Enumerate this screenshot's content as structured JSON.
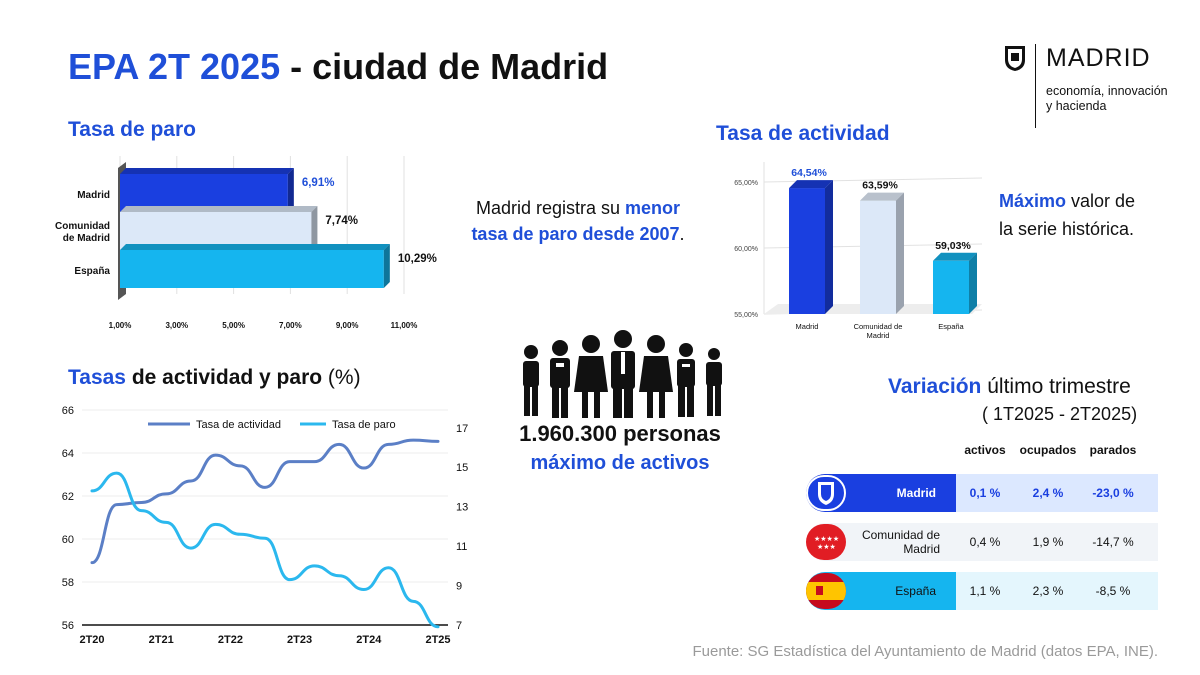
{
  "title": {
    "part1": "EPA 2T 2025",
    "part2": " - ciudad de Madrid"
  },
  "logo": {
    "word": "MADRID",
    "sub": "economía, innovación y hacienda"
  },
  "sections": {
    "paro": "Tasa de paro",
    "actividad": "Tasa de actividad",
    "tasas_a": "Tasas",
    "tasas_b": " de actividad y paro ",
    "tasas_c": "(%)",
    "variacion_a": "Variación",
    "variacion_b": " último trimestre",
    "variacion_sub": "( 1T2025 - 2T2025)"
  },
  "notes": {
    "paro_a": "Madrid registra su ",
    "paro_b": "menor",
    "paro_c": "tasa de paro desde 2007",
    "paro_d": ".",
    "actividad_a": "Máximo",
    "actividad_b": " valor de",
    "actividad_c": "la serie histórica."
  },
  "people": {
    "count": "1.960.300 personas",
    "label": "máximo de activos"
  },
  "source": "Fuente: SG Estadística del Ayuntamiento de Madrid (datos EPA, INE).",
  "colors": {
    "madrid": "#1a3fe0",
    "comunidad": "#dce8f8",
    "espana": "#15b5ef",
    "title_blue": "#1f4fd8",
    "actividad_line": "#5b7fc6",
    "paro_line": "#2bb8ee"
  },
  "variacion": {
    "headers": [
      "activos",
      "ocupados",
      "parados"
    ],
    "rows": [
      {
        "name": "Madrid",
        "values": [
          "0,1 %",
          "2,4 %",
          "-23,0 %"
        ],
        "icon": "madrid-shield-icon"
      },
      {
        "name": "Comunidad de Madrid",
        "values": [
          "0,4 %",
          "1,9 %",
          "-14,7 %"
        ],
        "icon": "comunidad-flag-icon"
      },
      {
        "name": "España",
        "values": [
          "1,1 %",
          "2,3 %",
          "-8,5 %"
        ],
        "icon": "spain-flag-icon"
      }
    ]
  },
  "chart_data": [
    {
      "type": "bar",
      "orientation": "horizontal",
      "categories": [
        "Madrid",
        "Comunidad de Madrid",
        "España"
      ],
      "values": [
        6.91,
        7.74,
        10.29
      ],
      "value_labels": [
        "6,91%",
        "7,74%",
        "10,29%"
      ],
      "xticks": [
        "1,00%",
        "3,00%",
        "5,00%",
        "7,00%",
        "9,00%",
        "11,00%"
      ],
      "xlim": [
        1,
        11
      ]
    },
    {
      "type": "bar",
      "categories": [
        "Madrid",
        "Comunidad de Madrid",
        "España"
      ],
      "values": [
        64.54,
        63.59,
        59.03
      ],
      "value_labels": [
        "64,54%",
        "63,59%",
        "59,03%"
      ],
      "yticks": [
        "55,00%",
        "60,00%",
        "65,00%"
      ],
      "ylim": [
        55,
        65
      ]
    },
    {
      "type": "line",
      "x_ticks": [
        "2T20",
        "2T21",
        "2T22",
        "2T23",
        "2T24",
        "2T25"
      ],
      "y_left_ticks": [
        "56",
        "58",
        "60",
        "62",
        "64",
        "66"
      ],
      "y_right_ticks": [
        "7",
        "9",
        "11",
        "13",
        "15",
        "17"
      ],
      "ylim_left": [
        56,
        66
      ],
      "ylim_right": [
        7,
        17.9
      ],
      "series": [
        {
          "name": "Tasa de actividad",
          "axis": "left",
          "values": [
            58.9,
            61.6,
            61.7,
            62.1,
            62.7,
            63.9,
            63.4,
            62.4,
            63.6,
            63.6,
            64.4,
            63.3,
            64.4,
            64.6,
            64.54
          ]
        },
        {
          "name": "Tasa de paro",
          "axis": "right",
          "values": [
            13.8,
            14.7,
            12.8,
            12.2,
            10.9,
            12.1,
            11.6,
            11.4,
            9.3,
            10.0,
            9.5,
            8.8,
            9.9,
            8.2,
            6.91
          ]
        }
      ]
    }
  ]
}
